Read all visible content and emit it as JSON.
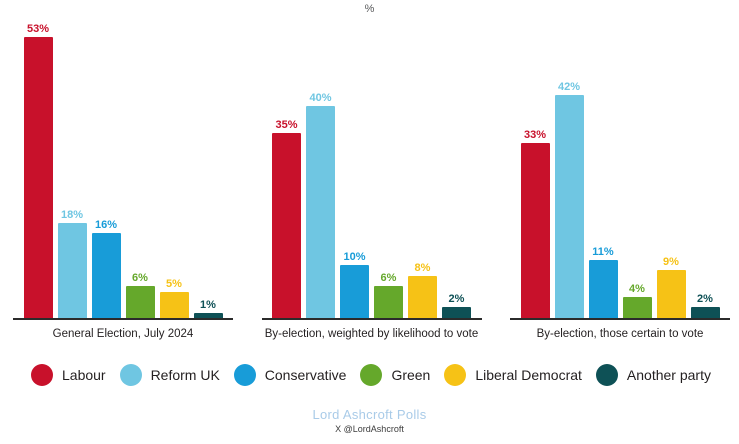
{
  "title": "%",
  "chart_data": {
    "type": "bar",
    "unit": "%",
    "title": "%",
    "categories": [
      "General Election, July  2024",
      "By-election, weighted by likelihood to vote",
      "By-election, those certain to vote"
    ],
    "series": [
      {
        "name": "Labour",
        "color": "#c8112b",
        "values": [
          53,
          35,
          33
        ]
      },
      {
        "name": "Reform UK",
        "color": "#6fc6e2",
        "values": [
          18,
          40,
          42
        ]
      },
      {
        "name": "Conservative",
        "color": "#189cd8",
        "values": [
          16,
          10,
          11
        ]
      },
      {
        "name": "Green",
        "color": "#65a82b",
        "values": [
          6,
          6,
          4
        ]
      },
      {
        "name": "Liberal Democrat",
        "color": "#f6c216",
        "values": [
          5,
          8,
          9
        ]
      },
      {
        "name": "Another party",
        "color": "#0e5156",
        "values": [
          1,
          2,
          2
        ]
      }
    ],
    "value_labels": true,
    "ylim": [
      0,
      55
    ],
    "grid": false,
    "legend_position": "bottom"
  },
  "footer": {
    "source": "Lord Ashcroft Polls",
    "handle": "X @LordAshcroft"
  }
}
